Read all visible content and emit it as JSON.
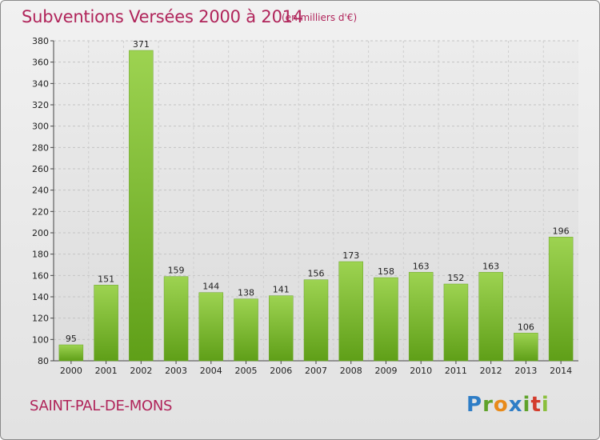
{
  "title": "Subventions Versées 2000 à 2014",
  "subtitle": "(en milliers d'€)",
  "town": "SAINT-PAL-DE-MONS",
  "logo": [
    "P",
    "r",
    "o",
    "x",
    "i",
    "t",
    "i"
  ],
  "colors": {
    "bar_top": "#9dd351",
    "bar_bottom": "#5f9f18",
    "title": "#b0245a"
  },
  "chart_data": {
    "type": "bar",
    "title": "Subventions Versées 2000 à 2014",
    "subtitle": "(en milliers d'€)",
    "categories": [
      "2000",
      "2001",
      "2002",
      "2003",
      "2004",
      "2005",
      "2006",
      "2007",
      "2008",
      "2009",
      "2010",
      "2011",
      "2012",
      "2013",
      "2014"
    ],
    "values": [
      95,
      151,
      371,
      159,
      144,
      138,
      141,
      156,
      173,
      158,
      163,
      152,
      163,
      106,
      196
    ],
    "ylim": [
      80,
      380
    ],
    "yticks": [
      80,
      100,
      120,
      140,
      160,
      180,
      200,
      220,
      240,
      260,
      280,
      300,
      320,
      340,
      360,
      380
    ],
    "grid": "horizontal dashed",
    "xlabel": "",
    "ylabel": ""
  }
}
